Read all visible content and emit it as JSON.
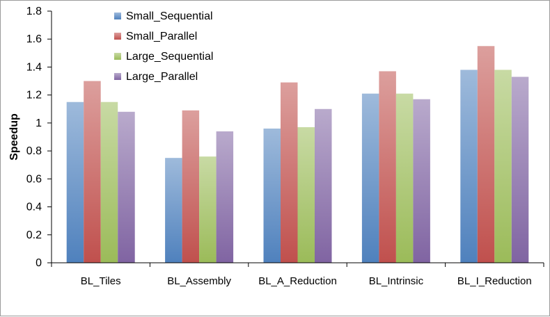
{
  "chart_data": {
    "type": "bar",
    "title": "",
    "xlabel": "",
    "ylabel": "Speedup",
    "ylim": [
      0,
      1.8
    ],
    "yticks": [
      "0",
      "0.2",
      "0.4",
      "0.6",
      "0.8",
      "1",
      "1.2",
      "1.4",
      "1.6",
      "1.8"
    ],
    "categories": [
      "BL_Tiles",
      "BL_Assembly",
      "BL_A_Reduction",
      "BL_Intrinsic",
      "BL_I_Reduction"
    ],
    "series": [
      {
        "name": "Small_Sequential",
        "color": "#4f81bd",
        "values": [
          1.15,
          0.75,
          0.96,
          1.21,
          1.38
        ]
      },
      {
        "name": "Small_Parallel",
        "color": "#c0504d",
        "values": [
          1.3,
          1.09,
          1.29,
          1.37,
          1.55
        ]
      },
      {
        "name": "Large_Sequential",
        "color": "#9bbb59",
        "values": [
          1.15,
          0.76,
          0.97,
          1.21,
          1.38
        ]
      },
      {
        "name": "Large_Parallel",
        "color": "#8064a2",
        "values": [
          1.08,
          0.94,
          1.1,
          1.17,
          1.33
        ]
      }
    ],
    "legend_position": "top-left",
    "grid": false
  }
}
